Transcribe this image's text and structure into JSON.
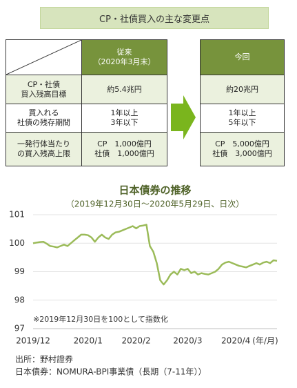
{
  "heading": "CP・社債買入の主な変更点",
  "table": {
    "columns": [
      "従来\n（2020年3月末）",
      "今回"
    ],
    "rows": [
      {
        "label": "CP・社債\n買入残高目標",
        "before": "約5.4兆円",
        "after": "約20兆円"
      },
      {
        "label": "買入れる\n社債の残存期間",
        "before": "1年以上\n3年以下",
        "after": "1年以上\n5年以下"
      },
      {
        "label": "一発行体当たり\nの買入残高上限",
        "before": "CP　1,000億円\n社債　1,000億円",
        "after": "CP　5,000億円\n社債　3,000億円"
      }
    ]
  },
  "chart_data": {
    "type": "line",
    "title": "日本債券の推移",
    "subtitle": "（2019年12月30日～2020年5月29日、日次）",
    "annotation": "※2019年12月30日を100として指数化",
    "xlabel": "(年/月)",
    "color": "#9bbb59",
    "grid": true,
    "ylim": [
      97,
      101
    ],
    "yticks": [
      97,
      98,
      99,
      100,
      101
    ],
    "categories": [
      "2019/12",
      null,
      null,
      null,
      null,
      null,
      null,
      null,
      null,
      null,
      null,
      null,
      null,
      null,
      null,
      null,
      "2020/1",
      null,
      null,
      null,
      null,
      null,
      null,
      null,
      null,
      null,
      null,
      null,
      null,
      null,
      "2020/2",
      null,
      null,
      null,
      null,
      null,
      null,
      null,
      null,
      null,
      null,
      null,
      null,
      null,
      null,
      "2020/3",
      null,
      null,
      null,
      null,
      null,
      null,
      null,
      null,
      null,
      null,
      null,
      null,
      null,
      "2020/4",
      null,
      null,
      null,
      null,
      null,
      null,
      null,
      null,
      null,
      null,
      null,
      null
    ],
    "values": [
      100.0,
      100.02,
      100.04,
      100.05,
      99.98,
      99.9,
      99.88,
      99.85,
      99.9,
      99.95,
      99.9,
      100.0,
      100.1,
      100.2,
      100.3,
      100.3,
      100.28,
      100.2,
      100.05,
      100.2,
      100.3,
      100.2,
      100.15,
      100.3,
      100.38,
      100.4,
      100.45,
      100.5,
      100.55,
      100.6,
      100.52,
      100.6,
      100.62,
      100.65,
      99.9,
      99.7,
      99.3,
      98.7,
      98.55,
      98.7,
      98.9,
      99.0,
      98.9,
      99.1,
      99.05,
      99.1,
      98.95,
      99.0,
      98.9,
      98.95,
      98.92,
      98.9,
      98.95,
      99.0,
      99.1,
      99.25,
      99.32,
      99.35,
      99.3,
      99.25,
      99.2,
      99.18,
      99.15,
      99.2,
      99.25,
      99.3,
      99.25,
      99.32,
      99.35,
      99.3,
      99.4,
      99.38
    ]
  },
  "notes": {
    "source": "出所：野村證券",
    "series_note": "日本債券：NOMURA-BPI事業債（長期（7-11年））"
  }
}
